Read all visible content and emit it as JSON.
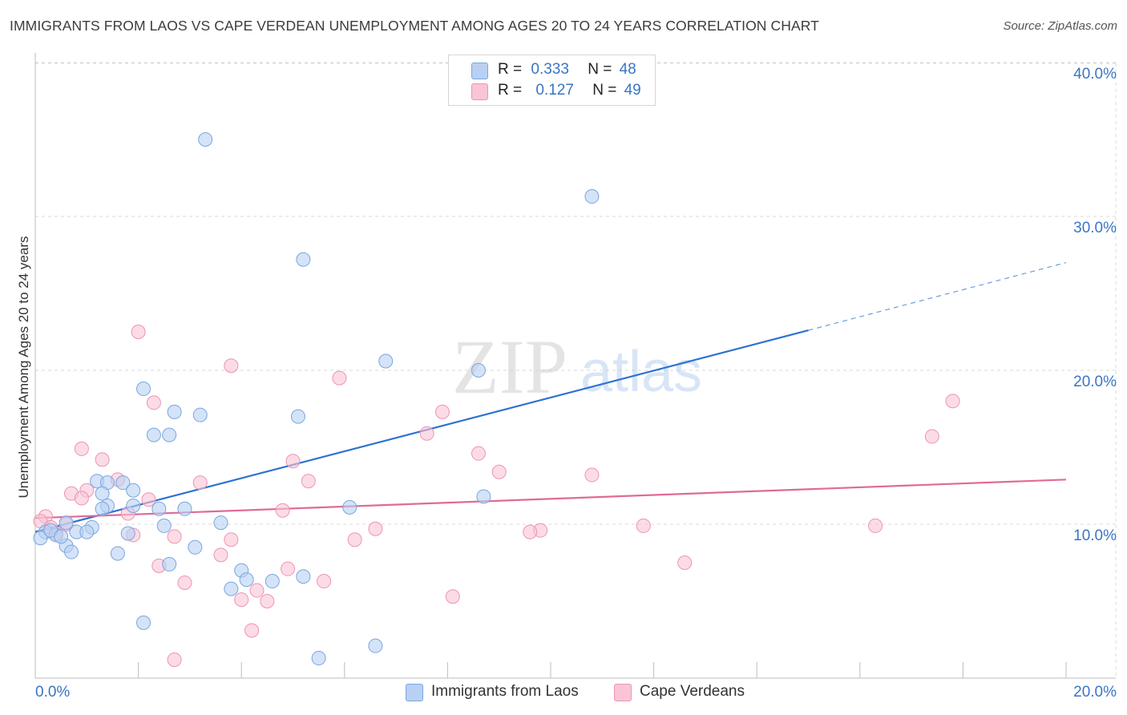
{
  "title": "IMMIGRANTS FROM LAOS VS CAPE VERDEAN UNEMPLOYMENT AMONG AGES 20 TO 24 YEARS CORRELATION CHART",
  "source": "Source: ZipAtlas.com",
  "watermark": {
    "zip": "ZIP",
    "atlas": "atlas"
  },
  "legend": {
    "r_label": "R =",
    "n_label": "N =",
    "series": [
      {
        "r": "0.333",
        "n": "48"
      },
      {
        "r": "0.127",
        "n": "49"
      }
    ]
  },
  "colors": {
    "laos_fill": "#b8d0f2",
    "laos_stroke": "#7aa6e0",
    "laos_line": "#2d72d2",
    "cape_fill": "#f9c5d6",
    "cape_stroke": "#ee93b2",
    "cape_line": "#e06a98",
    "axis_text": "#3a75c4",
    "grid": "#d9d9d9"
  },
  "chart_data": {
    "type": "scatter",
    "xlabel": "",
    "ylabel": "Unemployment Among Ages 20 to 24 years",
    "xlim": [
      0,
      20
    ],
    "ylim": [
      0,
      40
    ],
    "x_tick_labels": [
      "0.0%",
      "20.0%"
    ],
    "y_ticks": [
      10,
      20,
      30,
      40
    ],
    "y_tick_labels": [
      "10.0%",
      "20.0%",
      "30.0%",
      "40.0%"
    ],
    "series": [
      {
        "name": "Immigrants from Laos",
        "r": 0.333,
        "n": 48,
        "trend": {
          "x0": 0,
          "y0": 9.5,
          "x1": 15.0,
          "y1": 22.6,
          "dash_to_x": 20,
          "dash_to_y": 27.0
        },
        "points": [
          [
            3.3,
            35.0
          ],
          [
            10.8,
            31.3
          ],
          [
            5.2,
            27.2
          ],
          [
            6.8,
            20.6
          ],
          [
            8.6,
            20.0
          ],
          [
            2.1,
            18.8
          ],
          [
            2.7,
            17.3
          ],
          [
            3.2,
            17.1
          ],
          [
            5.1,
            17.0
          ],
          [
            2.3,
            15.8
          ],
          [
            2.6,
            15.8
          ],
          [
            1.2,
            12.8
          ],
          [
            1.7,
            12.7
          ],
          [
            1.4,
            12.7
          ],
          [
            1.9,
            12.2
          ],
          [
            1.3,
            12.0
          ],
          [
            8.7,
            11.8
          ],
          [
            1.4,
            11.2
          ],
          [
            1.9,
            11.2
          ],
          [
            6.1,
            11.1
          ],
          [
            1.3,
            11.0
          ],
          [
            2.4,
            11.0
          ],
          [
            2.9,
            11.0
          ],
          [
            3.6,
            10.1
          ],
          [
            0.6,
            10.1
          ],
          [
            2.5,
            9.9
          ],
          [
            1.1,
            9.8
          ],
          [
            0.8,
            9.5
          ],
          [
            1.0,
            9.5
          ],
          [
            1.8,
            9.4
          ],
          [
            0.2,
            9.5
          ],
          [
            0.4,
            9.3
          ],
          [
            0.1,
            9.1
          ],
          [
            0.6,
            8.6
          ],
          [
            0.7,
            8.2
          ],
          [
            1.6,
            8.1
          ],
          [
            3.1,
            8.5
          ],
          [
            2.6,
            7.4
          ],
          [
            4.0,
            7.0
          ],
          [
            4.1,
            6.4
          ],
          [
            4.6,
            6.3
          ],
          [
            5.2,
            6.6
          ],
          [
            3.8,
            5.8
          ],
          [
            2.1,
            3.6
          ],
          [
            6.6,
            2.1
          ],
          [
            5.5,
            1.3
          ],
          [
            0.3,
            9.6
          ],
          [
            0.5,
            9.2
          ]
        ]
      },
      {
        "name": "Cape Verdeans",
        "r": 0.127,
        "n": 49,
        "trend": {
          "x0": 0,
          "y0": 10.4,
          "x1": 20,
          "y1": 12.9
        },
        "points": [
          [
            2.0,
            22.5
          ],
          [
            3.8,
            20.3
          ],
          [
            5.9,
            19.5
          ],
          [
            17.8,
            18.0
          ],
          [
            2.3,
            17.9
          ],
          [
            7.9,
            17.3
          ],
          [
            7.6,
            15.9
          ],
          [
            17.4,
            15.7
          ],
          [
            0.9,
            14.9
          ],
          [
            1.3,
            14.2
          ],
          [
            8.6,
            14.6
          ],
          [
            5.0,
            14.1
          ],
          [
            9.0,
            13.4
          ],
          [
            10.8,
            13.2
          ],
          [
            1.6,
            12.9
          ],
          [
            3.2,
            12.7
          ],
          [
            5.3,
            12.8
          ],
          [
            1.0,
            12.2
          ],
          [
            0.7,
            12.0
          ],
          [
            0.9,
            11.7
          ],
          [
            2.2,
            11.6
          ],
          [
            1.8,
            10.7
          ],
          [
            4.8,
            10.9
          ],
          [
            0.2,
            10.5
          ],
          [
            0.1,
            10.2
          ],
          [
            0.6,
            10.0
          ],
          [
            0.3,
            9.8
          ],
          [
            6.6,
            9.7
          ],
          [
            9.8,
            9.6
          ],
          [
            9.6,
            9.5
          ],
          [
            11.8,
            9.9
          ],
          [
            16.3,
            9.9
          ],
          [
            1.9,
            9.3
          ],
          [
            2.7,
            9.2
          ],
          [
            3.8,
            9.0
          ],
          [
            6.2,
            9.0
          ],
          [
            3.6,
            8.0
          ],
          [
            12.6,
            7.5
          ],
          [
            2.4,
            7.3
          ],
          [
            4.9,
            7.1
          ],
          [
            2.9,
            6.2
          ],
          [
            5.6,
            6.3
          ],
          [
            4.3,
            5.7
          ],
          [
            4.0,
            5.1
          ],
          [
            4.5,
            5.0
          ],
          [
            8.1,
            5.3
          ],
          [
            4.2,
            3.1
          ],
          [
            2.7,
            1.2
          ],
          [
            0.4,
            9.4
          ]
        ]
      }
    ]
  },
  "bottom_legend": [
    "Immigrants from Laos",
    "Cape Verdeans"
  ]
}
